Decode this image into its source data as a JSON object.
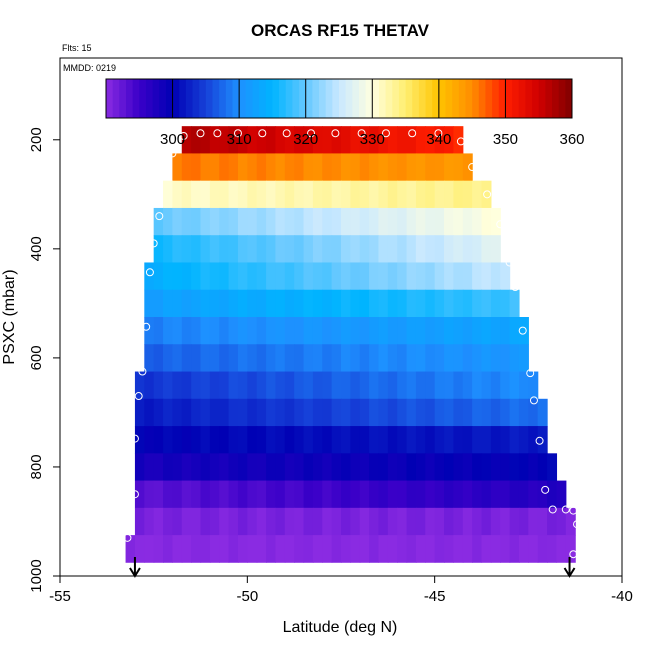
{
  "chart_data": {
    "type": "heatmap",
    "title": "ORCAS RF15 THETAV",
    "flts_label": "Flts: 15",
    "mmdd_label": "MMDD: 0219",
    "xlabel": "Latitude (deg N)",
    "ylabel": "PSXC (mbar)",
    "xlim": [
      -55,
      -40
    ],
    "ylim": [
      1000,
      50
    ],
    "x_ticks": [
      -55,
      -50,
      -45,
      -40
    ],
    "x_tick_labels": [
      "-55",
      "-50",
      "-45",
      "-40"
    ],
    "y_ticks": [
      200,
      400,
      600,
      800,
      1000
    ],
    "y_tick_labels": [
      "200",
      "400",
      "600",
      "800",
      "1000"
    ],
    "colorbar": {
      "min": 290,
      "max": 360,
      "ticks": [
        300,
        310,
        320,
        330,
        340,
        350,
        360
      ],
      "tick_labels": [
        "300",
        "310",
        "320",
        "330",
        "340",
        "350",
        "360"
      ],
      "stops": [
        {
          "v": 290,
          "c": "#8a2be2"
        },
        {
          "v": 295,
          "c": "#3a00c8"
        },
        {
          "v": 300,
          "c": "#0000b4"
        },
        {
          "v": 305,
          "c": "#1640d8"
        },
        {
          "v": 310,
          "c": "#1e90ff"
        },
        {
          "v": 315,
          "c": "#00b4ff"
        },
        {
          "v": 320,
          "c": "#64c8ff"
        },
        {
          "v": 325,
          "c": "#c8e8ff"
        },
        {
          "v": 330,
          "c": "#ffffe0"
        },
        {
          "v": 335,
          "c": "#ffee70"
        },
        {
          "v": 340,
          "c": "#ffc400"
        },
        {
          "v": 345,
          "c": "#ff8c00"
        },
        {
          "v": 350,
          "c": "#ff1e00"
        },
        {
          "v": 355,
          "c": "#d00000"
        },
        {
          "v": 360,
          "c": "#800000"
        }
      ]
    },
    "cell_lat_step": 0.25,
    "band_height_mbar": 50,
    "bands": [
      {
        "p_top": 175,
        "lat_min": -51.75,
        "lat_max": -44.25,
        "v_left": 357,
        "v_right": 350
      },
      {
        "p_top": 225,
        "lat_min": -52.0,
        "lat_max": -44.0,
        "v_left": 346,
        "v_right": 344
      },
      {
        "p_top": 275,
        "lat_min": -52.25,
        "lat_max": -43.5,
        "v_left": 331,
        "v_right": 334
      },
      {
        "p_top": 325,
        "lat_min": -52.5,
        "lat_max": -43.25,
        "v_left": 320,
        "v_right": 330
      },
      {
        "p_top": 375,
        "lat_min": -52.5,
        "lat_max": -43.25,
        "v_left": 316,
        "v_right": 327
      },
      {
        "p_top": 425,
        "lat_min": -52.75,
        "lat_max": -43.0,
        "v_left": 314,
        "v_right": 325
      },
      {
        "p_top": 475,
        "lat_min": -52.75,
        "lat_max": -42.75,
        "v_left": 312,
        "v_right": 318
      },
      {
        "p_top": 525,
        "lat_min": -52.75,
        "lat_max": -42.5,
        "v_left": 309,
        "v_right": 313
      },
      {
        "p_top": 575,
        "lat_min": -52.75,
        "lat_max": -42.5,
        "v_left": 307,
        "v_right": 311
      },
      {
        "p_top": 625,
        "lat_min": -53.0,
        "lat_max": -42.25,
        "v_left": 304,
        "v_right": 310
      },
      {
        "p_top": 675,
        "lat_min": -53.0,
        "lat_max": -42.0,
        "v_left": 302,
        "v_right": 308
      },
      {
        "p_top": 725,
        "lat_min": -53.0,
        "lat_max": -42.0,
        "v_left": 300,
        "v_right": 302
      },
      {
        "p_top": 775,
        "lat_min": -53.0,
        "lat_max": -41.75,
        "v_left": 298,
        "v_right": 300
      },
      {
        "p_top": 825,
        "lat_min": -53.0,
        "lat_max": -41.5,
        "v_left": 293,
        "v_right": 297
      },
      {
        "p_top": 875,
        "lat_min": -53.0,
        "lat_max": -41.25,
        "v_left": 291,
        "v_right": 291
      },
      {
        "p_top": 925,
        "lat_min": -53.25,
        "lat_max": -41.25,
        "v_left": 290,
        "v_right": 290
      }
    ],
    "track_points": [
      {
        "lat": -53.2,
        "p": 930
      },
      {
        "lat": -53.0,
        "p": 850
      },
      {
        "lat": -53.0,
        "p": 748
      },
      {
        "lat": -52.9,
        "p": 670
      },
      {
        "lat": -52.8,
        "p": 625
      },
      {
        "lat": -52.7,
        "p": 543
      },
      {
        "lat": -52.6,
        "p": 443
      },
      {
        "lat": -52.5,
        "p": 390
      },
      {
        "lat": -52.35,
        "p": 340
      },
      {
        "lat": -52.0,
        "p": 225
      },
      {
        "lat": -51.7,
        "p": 193
      },
      {
        "lat": -51.25,
        "p": 188
      },
      {
        "lat": -50.8,
        "p": 188
      },
      {
        "lat": -50.25,
        "p": 188
      },
      {
        "lat": -49.6,
        "p": 188
      },
      {
        "lat": -48.95,
        "p": 188
      },
      {
        "lat": -48.3,
        "p": 188
      },
      {
        "lat": -47.65,
        "p": 188
      },
      {
        "lat": -46.95,
        "p": 188
      },
      {
        "lat": -46.3,
        "p": 188
      },
      {
        "lat": -45.6,
        "p": 188
      },
      {
        "lat": -44.9,
        "p": 188
      },
      {
        "lat": -44.3,
        "p": 203
      },
      {
        "lat": -44.0,
        "p": 250
      },
      {
        "lat": -43.6,
        "p": 300
      },
      {
        "lat": -43.25,
        "p": 355
      },
      {
        "lat": -43.0,
        "p": 425
      },
      {
        "lat": -42.85,
        "p": 470
      },
      {
        "lat": -42.65,
        "p": 550
      },
      {
        "lat": -42.45,
        "p": 628
      },
      {
        "lat": -42.35,
        "p": 678
      },
      {
        "lat": -42.2,
        "p": 752
      },
      {
        "lat": -42.05,
        "p": 842
      },
      {
        "lat": -41.85,
        "p": 878
      },
      {
        "lat": -41.5,
        "p": 878
      },
      {
        "lat": -41.3,
        "p": 880
      },
      {
        "lat": -41.2,
        "p": 905
      },
      {
        "lat": -41.3,
        "p": 960
      }
    ],
    "arrow_lats": [
      -53.0,
      -41.4
    ],
    "colors": {
      "axis": "#000000",
      "marker": "#ffffff",
      "background": "#ffffff"
    }
  }
}
